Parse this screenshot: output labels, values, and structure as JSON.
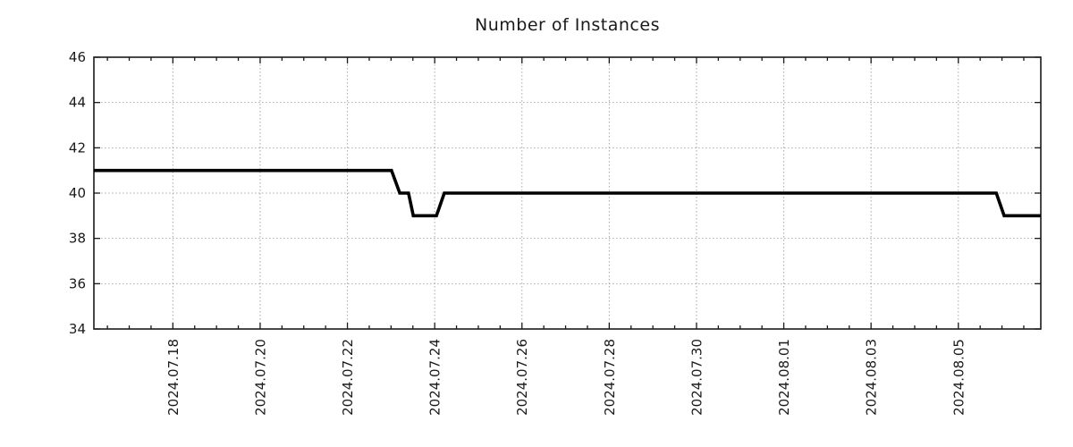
{
  "chart_data": {
    "type": "line",
    "title": "Number of Instances",
    "xlabel": "",
    "ylabel": "",
    "grid": true,
    "legend": "none",
    "background": "#ffffff",
    "axis_color": "#1a1a1a",
    "grid_color": "#a8a8a8",
    "line_color": "#000000",
    "day_zero": "2024-07-16 00:00",
    "xlim_days": [
      0.19,
      21.89
    ],
    "ylim": [
      34,
      46
    ],
    "y_ticks": [
      34,
      36,
      38,
      40,
      42,
      44,
      46
    ],
    "x_minor_step_days": 0.5,
    "x_ticks": [
      {
        "day": 2,
        "label": "2024.07.18"
      },
      {
        "day": 4,
        "label": "2024.07.20"
      },
      {
        "day": 6,
        "label": "2024.07.22"
      },
      {
        "day": 8,
        "label": "2024.07.24"
      },
      {
        "day": 10,
        "label": "2024.07.26"
      },
      {
        "day": 12,
        "label": "2024.07.28"
      },
      {
        "day": 14,
        "label": "2024.07.30"
      },
      {
        "day": 16,
        "label": "2024.08.01"
      },
      {
        "day": 18,
        "label": "2024.08.03"
      },
      {
        "day": 20,
        "label": "2024.08.05"
      }
    ],
    "series": [
      {
        "name": "Number of Instances",
        "color": "#000000",
        "width": 3.6,
        "points": [
          {
            "day": 0.19,
            "date": "2024-07-16 04:30",
            "value": 41
          },
          {
            "day": 7.01,
            "date": "2024-07-23 00:15",
            "value": 41
          },
          {
            "day": 7.2,
            "date": "2024-07-23 05:00",
            "value": 40
          },
          {
            "day": 7.4,
            "date": "2024-07-23 09:45",
            "value": 40
          },
          {
            "day": 7.51,
            "date": "2024-07-23 12:15",
            "value": 39
          },
          {
            "day": 8.04,
            "date": "2024-07-24 01:00",
            "value": 39
          },
          {
            "day": 8.22,
            "date": "2024-07-24 05:15",
            "value": 40
          },
          {
            "day": 20.87,
            "date": "2024-08-05 21:00",
            "value": 40
          },
          {
            "day": 21.05,
            "date": "2024-08-06 01:15",
            "value": 39
          },
          {
            "day": 21.89,
            "date": "2024-08-06 21:20",
            "value": 39
          }
        ]
      }
    ]
  }
}
